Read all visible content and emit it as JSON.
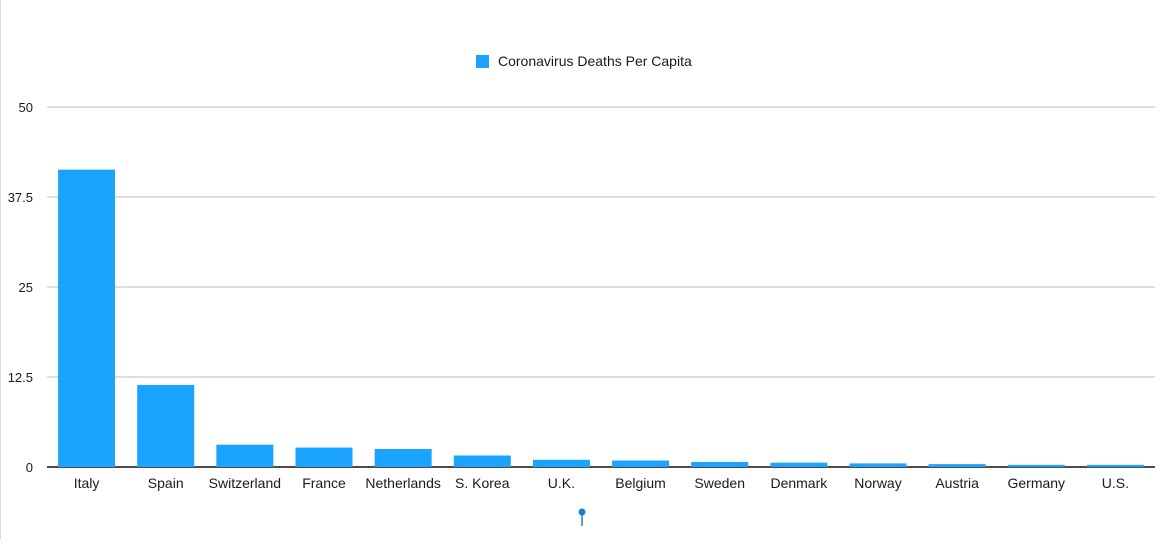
{
  "chart_data": {
    "type": "bar",
    "title": "",
    "xlabel": "",
    "ylabel": "",
    "categories": [
      "Italy",
      "Spain",
      "Switzerland",
      "France",
      "Netherlands",
      "S. Korea",
      "U.K.",
      "Belgium",
      "Sweden",
      "Denmark",
      "Norway",
      "Austria",
      "Germany",
      "U.S."
    ],
    "series": [
      {
        "name": "Coronavirus Deaths Per Capita",
        "color": "#1aa3ff",
        "values": [
          41.3,
          11.4,
          3.1,
          2.7,
          2.5,
          1.6,
          1.0,
          0.9,
          0.7,
          0.6,
          0.5,
          0.4,
          0.3,
          0.3
        ]
      }
    ],
    "ylim": [
      0,
      50
    ],
    "yticks": [
      0,
      12.5,
      25,
      37.5,
      50
    ],
    "ytick_labels": [
      "0",
      "12.5",
      "25",
      "37.5",
      "50"
    ],
    "grid": true,
    "legend_position": "top-center"
  }
}
